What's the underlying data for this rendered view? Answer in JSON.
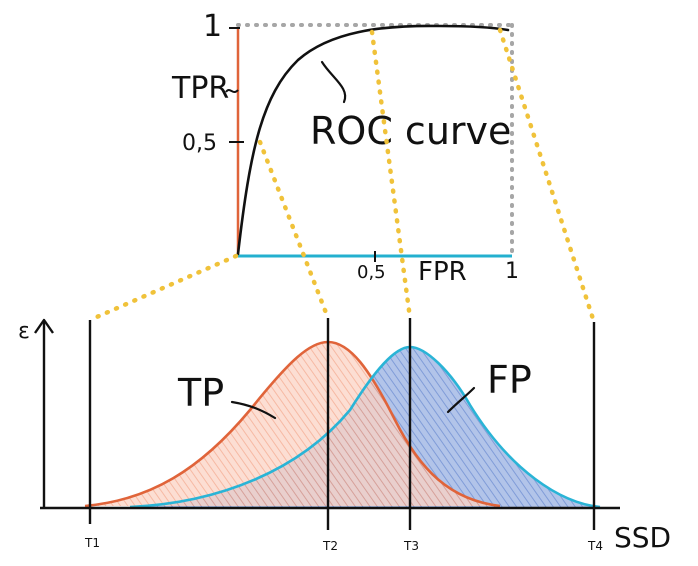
{
  "roc": {
    "y_tick_top": "1",
    "y_tick_half": "0,5",
    "y_label": "TPR",
    "x_tick_half": "0,5",
    "x_tick_one": "1",
    "x_label": "FPR",
    "curve_label": "ROC curve"
  },
  "distributions": {
    "y_axis_label": "ε",
    "tp_label": "TP",
    "fp_label": "FP",
    "x_axis_label": "SSD",
    "thresholds": [
      "T1",
      "T2",
      "T3",
      "T4"
    ]
  },
  "colors": {
    "tpr_axis": "#e0643a",
    "fpr_axis": "#23b0cf",
    "tp_curve": "#e0643a",
    "tp_fill": "#f7b7a0",
    "fp_curve": "#2ab4d6",
    "fp_fill": "#7f9ed8",
    "dotted_yellow": "#f0c23a",
    "dotted_grey": "#a6a6a6",
    "ink": "#111111"
  }
}
